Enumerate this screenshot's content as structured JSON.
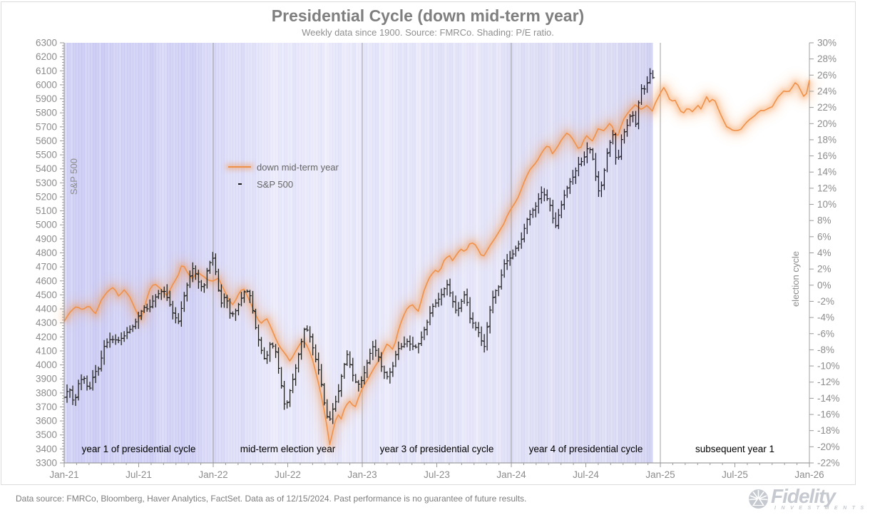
{
  "chart_data": {
    "type": "line",
    "title": "Presidential Cycle (down mid-term year)",
    "subtitle": "Weekly data since 1900. Source: FMRCo. Shading: P/E ratio.",
    "left_axis": {
      "label": "S&P 500",
      "min": 3300,
      "max": 6300,
      "step": 100
    },
    "right_axis": {
      "label": "election cycle",
      "min": -22,
      "max": 30,
      "step": 2,
      "unit": "%"
    },
    "x_axis": {
      "tick_labels": [
        "Jan-21",
        "Jul-21",
        "Jan-22",
        "Jul-22",
        "Jan-23",
        "Jul-23",
        "Jan-24",
        "Jul-24",
        "Jan-25",
        "Jul-25",
        "Jan-26"
      ],
      "months_total": 60
    },
    "legend": [
      {
        "label": "down mid-term year",
        "type": "line",
        "color": "#f0914a"
      },
      {
        "label": "S&P 500",
        "type": "bar",
        "color": "#1a1a1a"
      }
    ],
    "annotations": [
      "year 1 of presidential cycle",
      "mid-term election year",
      "year 3 of presidential cycle",
      "year 4 of presidential cycle",
      "subsequent year 1"
    ],
    "series": [
      {
        "name": "down mid-term year",
        "color": "#f0914a",
        "axis": "left",
        "points": [
          [
            0,
            4310
          ],
          [
            0.5,
            4370
          ],
          [
            1,
            4420
          ],
          [
            1.5,
            4390
          ],
          [
            2,
            4410
          ],
          [
            2.5,
            4360
          ],
          [
            3,
            4470
          ],
          [
            3.5,
            4520
          ],
          [
            4,
            4560
          ],
          [
            4.4,
            4500
          ],
          [
            4.8,
            4545
          ],
          [
            5.3,
            4480
          ],
          [
            5.8,
            4390
          ],
          [
            6.2,
            4330
          ],
          [
            6.6,
            4450
          ],
          [
            7,
            4555
          ],
          [
            7.4,
            4575
          ],
          [
            7.8,
            4540
          ],
          [
            8.3,
            4480
          ],
          [
            8.7,
            4560
          ],
          [
            9.2,
            4650
          ],
          [
            9.5,
            4730
          ],
          [
            9.9,
            4660
          ],
          [
            10.3,
            4610
          ],
          [
            10.7,
            4680
          ],
          [
            11.2,
            4640
          ],
          [
            11.6,
            4600
          ],
          [
            12,
            4600
          ],
          [
            12.4,
            4630
          ],
          [
            12.8,
            4550
          ],
          [
            13.2,
            4460
          ],
          [
            13.6,
            4420
          ],
          [
            14,
            4500
          ],
          [
            14.4,
            4550
          ],
          [
            14.8,
            4470
          ],
          [
            15.3,
            4380
          ],
          [
            15.8,
            4300
          ],
          [
            16.3,
            4330
          ],
          [
            16.8,
            4240
          ],
          [
            17.3,
            4150
          ],
          [
            17.8,
            4080
          ],
          [
            18.2,
            4020
          ],
          [
            18.5,
            4080
          ],
          [
            18.8,
            4130
          ],
          [
            19.2,
            4180
          ],
          [
            19.6,
            4120
          ],
          [
            20,
            4030
          ],
          [
            20.4,
            3900
          ],
          [
            20.8,
            3740
          ],
          [
            21.1,
            3580
          ],
          [
            21.4,
            3410
          ],
          [
            21.7,
            3560
          ],
          [
            22,
            3660
          ],
          [
            22.3,
            3620
          ],
          [
            22.6,
            3700
          ],
          [
            23,
            3740
          ],
          [
            23.4,
            3700
          ],
          [
            23.7,
            3780
          ],
          [
            24,
            3840
          ],
          [
            24.5,
            3900
          ],
          [
            25,
            3990
          ],
          [
            25.5,
            4060
          ],
          [
            26,
            4140
          ],
          [
            26.5,
            4100
          ],
          [
            27,
            4280
          ],
          [
            27.5,
            4380
          ],
          [
            28,
            4430
          ],
          [
            28.5,
            4390
          ],
          [
            29,
            4540
          ],
          [
            29.5,
            4640
          ],
          [
            30,
            4700
          ],
          [
            30.2,
            4660
          ],
          [
            30.5,
            4740
          ],
          [
            31,
            4780
          ],
          [
            31.3,
            4740
          ],
          [
            31.6,
            4800
          ],
          [
            32,
            4830
          ],
          [
            32.3,
            4790
          ],
          [
            32.6,
            4850
          ],
          [
            33,
            4870
          ],
          [
            33.3,
            4830
          ],
          [
            33.7,
            4760
          ],
          [
            34,
            4800
          ],
          [
            34.5,
            4880
          ],
          [
            35,
            4960
          ],
          [
            35.4,
            5010
          ],
          [
            35.7,
            5070
          ],
          [
            36,
            5120
          ],
          [
            36.5,
            5200
          ],
          [
            37,
            5300
          ],
          [
            37.5,
            5390
          ],
          [
            38,
            5450
          ],
          [
            38.5,
            5520
          ],
          [
            39,
            5560
          ],
          [
            39.3,
            5500
          ],
          [
            40,
            5600
          ],
          [
            40.5,
            5650
          ],
          [
            41,
            5610
          ],
          [
            41.5,
            5540
          ],
          [
            42,
            5640
          ],
          [
            42.5,
            5600
          ],
          [
            43,
            5700
          ],
          [
            43.5,
            5670
          ],
          [
            44,
            5730
          ],
          [
            44.5,
            5620
          ],
          [
            45,
            5740
          ],
          [
            45.5,
            5800
          ],
          [
            46,
            5860
          ],
          [
            46.5,
            5820
          ],
          [
            47,
            5850
          ],
          [
            47.3,
            5800
          ],
          [
            47.6,
            5880
          ],
          [
            48,
            5950
          ],
          [
            48.3,
            5985
          ],
          [
            48.8,
            5885
          ],
          [
            49.2,
            5900
          ],
          [
            49.8,
            5790
          ],
          [
            50.2,
            5830
          ],
          [
            50.6,
            5805
          ],
          [
            51,
            5860
          ],
          [
            51.3,
            5820
          ],
          [
            51.7,
            5905
          ],
          [
            52,
            5860
          ],
          [
            52.3,
            5910
          ],
          [
            52.8,
            5800
          ],
          [
            53.3,
            5695
          ],
          [
            53.8,
            5680
          ],
          [
            54.5,
            5690
          ],
          [
            55.2,
            5755
          ],
          [
            56,
            5825
          ],
          [
            56.4,
            5810
          ],
          [
            57,
            5840
          ],
          [
            57.4,
            5910
          ],
          [
            58,
            5950
          ],
          [
            58.3,
            5930
          ],
          [
            58.6,
            5975
          ],
          [
            58.9,
            6025
          ],
          [
            59.2,
            5985
          ],
          [
            59.5,
            5910
          ],
          [
            59.8,
            5935
          ],
          [
            60,
            6030
          ]
        ]
      },
      {
        "name": "S&P 500",
        "color": "#1a1a1a",
        "axis": "left",
        "end_month": 47.4,
        "points": [
          [
            0,
            3768
          ],
          [
            0.4,
            3841
          ],
          [
            0.8,
            3714
          ],
          [
            1.2,
            3887
          ],
          [
            1.6,
            3906
          ],
          [
            2,
            3811
          ],
          [
            2.4,
            3943
          ],
          [
            2.8,
            3975
          ],
          [
            3.2,
            4129
          ],
          [
            3.6,
            4180
          ],
          [
            4,
            4181
          ],
          [
            4.4,
            4174
          ],
          [
            4.8,
            4204
          ],
          [
            5.2,
            4247
          ],
          [
            5.6,
            4280
          ],
          [
            6,
            4352
          ],
          [
            6.4,
            4412
          ],
          [
            6.8,
            4395
          ],
          [
            7.2,
            4468
          ],
          [
            7.6,
            4509
          ],
          [
            8,
            4535
          ],
          [
            8.4,
            4459
          ],
          [
            8.8,
            4357
          ],
          [
            9.2,
            4308
          ],
          [
            9.6,
            4471
          ],
          [
            10,
            4605
          ],
          [
            10.4,
            4698
          ],
          [
            10.8,
            4595
          ],
          [
            11.2,
            4538
          ],
          [
            11.6,
            4712
          ],
          [
            12,
            4766
          ],
          [
            12.2,
            4663
          ],
          [
            12.6,
            4432
          ],
          [
            13,
            4500
          ],
          [
            13.4,
            4349
          ],
          [
            13.8,
            4385
          ],
          [
            14.2,
            4463
          ],
          [
            14.6,
            4543
          ],
          [
            15,
            4488
          ],
          [
            15.4,
            4272
          ],
          [
            15.8,
            4123
          ],
          [
            16.2,
            4023
          ],
          [
            16.6,
            4158
          ],
          [
            17,
            4109
          ],
          [
            17.4,
            3901
          ],
          [
            17.8,
            3675
          ],
          [
            18.2,
            3825
          ],
          [
            18.6,
            3961
          ],
          [
            19,
            4130
          ],
          [
            19.4,
            4280
          ],
          [
            19.8,
            4199
          ],
          [
            20.2,
            4057
          ],
          [
            20.6,
            3924
          ],
          [
            21,
            3693
          ],
          [
            21.3,
            3583
          ],
          [
            21.6,
            3677
          ],
          [
            22,
            3770
          ],
          [
            22.4,
            3957
          ],
          [
            22.8,
            4080
          ],
          [
            23.2,
            3934
          ],
          [
            23.6,
            3852
          ],
          [
            24,
            3895
          ],
          [
            24.4,
            4016
          ],
          [
            24.8,
            4136
          ],
          [
            25.2,
            4090
          ],
          [
            25.6,
            3970
          ],
          [
            26,
            3916
          ],
          [
            26.4,
            3971
          ],
          [
            26.8,
            4109
          ],
          [
            27.2,
            4133
          ],
          [
            27.6,
            4169
          ],
          [
            28,
            4136
          ],
          [
            28.4,
            4124
          ],
          [
            28.8,
            4205
          ],
          [
            29.2,
            4299
          ],
          [
            29.6,
            4410
          ],
          [
            30,
            4450
          ],
          [
            30.4,
            4505
          ],
          [
            30.8,
            4582
          ],
          [
            31.2,
            4478
          ],
          [
            31.6,
            4370
          ],
          [
            32,
            4458
          ],
          [
            32.3,
            4516
          ],
          [
            32.7,
            4320
          ],
          [
            33,
            4288
          ],
          [
            33.4,
            4224
          ],
          [
            33.8,
            4117
          ],
          [
            34.2,
            4358
          ],
          [
            34.6,
            4514
          ],
          [
            35,
            4560
          ],
          [
            35.4,
            4719
          ],
          [
            35.8,
            4755
          ],
          [
            36,
            4770
          ],
          [
            36.4,
            4840
          ],
          [
            36.8,
            4891
          ],
          [
            37.2,
            5027
          ],
          [
            37.6,
            5089
          ],
          [
            38,
            5137
          ],
          [
            38.4,
            5234
          ],
          [
            38.8,
            5204
          ],
          [
            39.2,
            5123
          ],
          [
            39.5,
            4967
          ],
          [
            39.9,
            5100
          ],
          [
            40.3,
            5222
          ],
          [
            40.7,
            5304
          ],
          [
            41,
            5346
          ],
          [
            41.4,
            5431
          ],
          [
            41.8,
            5464
          ],
          [
            42.2,
            5567
          ],
          [
            42.5,
            5505
          ],
          [
            42.8,
            5346
          ],
          [
            43.1,
            5210
          ],
          [
            43.4,
            5344
          ],
          [
            43.8,
            5554
          ],
          [
            44.2,
            5648
          ],
          [
            44.5,
            5408
          ],
          [
            44.9,
            5626
          ],
          [
            45.3,
            5702
          ],
          [
            45.7,
            5815
          ],
          [
            46,
            5705
          ],
          [
            46.4,
            5973
          ],
          [
            46.8,
            5969
          ],
          [
            47,
            6032
          ],
          [
            47.2,
            6090
          ],
          [
            47.4,
            6051
          ]
        ]
      }
    ],
    "shading": {
      "label": "P/E ratio",
      "color_rgb": "126,126,222",
      "end_month": 47.3,
      "monthly_intensity": [
        0.55,
        0.66,
        0.6,
        0.62,
        0.55,
        0.6,
        0.63,
        0.6,
        0.5,
        0.56,
        0.6,
        0.55,
        0.5,
        0.44,
        0.47,
        0.42,
        0.34,
        0.3,
        0.32,
        0.35,
        0.27,
        0.24,
        0.3,
        0.29,
        0.3,
        0.32,
        0.3,
        0.32,
        0.32,
        0.35,
        0.37,
        0.35,
        0.32,
        0.29,
        0.32,
        0.37,
        0.39,
        0.42,
        0.44,
        0.4,
        0.42,
        0.46,
        0.48,
        0.44,
        0.48,
        0.5,
        0.54,
        0.57
      ]
    }
  },
  "footer": {
    "disclaimer": "Data source: FMRCo, Bloomberg, Haver Analytics, FactSet. Data as of 12/15/2024. Past performance is no guarantee of future results.",
    "logo": {
      "brand": "Fidelity",
      "sub": "I N V E S T M E N T S"
    }
  }
}
